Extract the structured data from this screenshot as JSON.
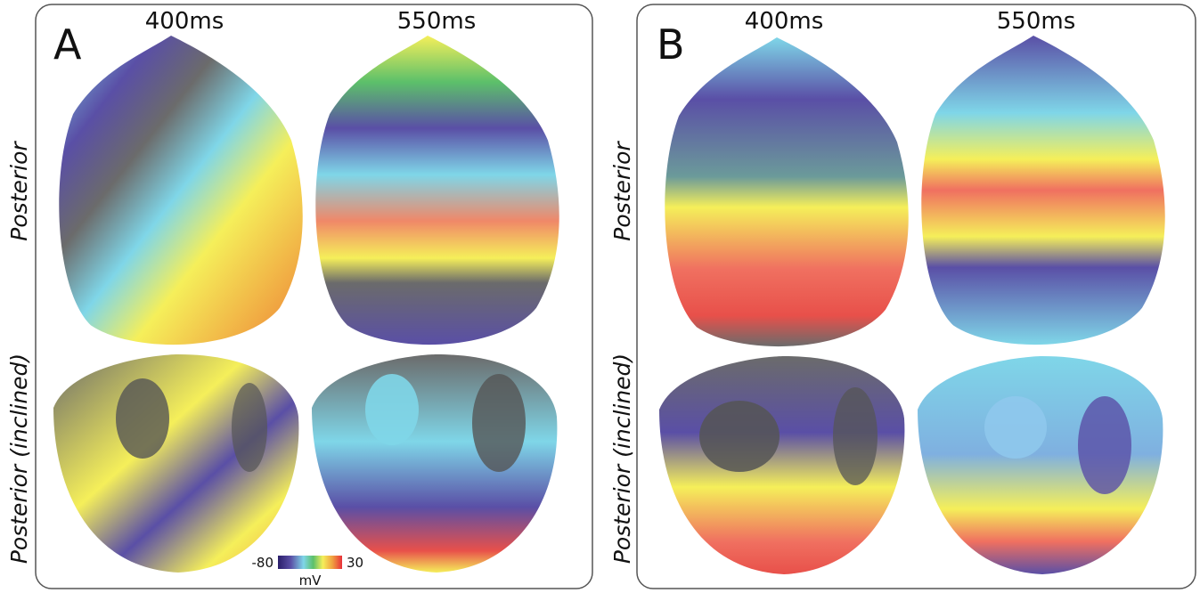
{
  "panels": [
    {
      "label": "A",
      "columns": [
        "400ms",
        "550ms"
      ],
      "rows": [
        "Posterior",
        "Posterior (inclined)"
      ]
    },
    {
      "label": "B",
      "columns": [
        "400ms",
        "550ms"
      ],
      "rows": [
        "Posterior",
        "Posterior (inclined)"
      ]
    }
  ],
  "colorbar": {
    "min": "-80",
    "max": "30",
    "unit": "mV"
  }
}
